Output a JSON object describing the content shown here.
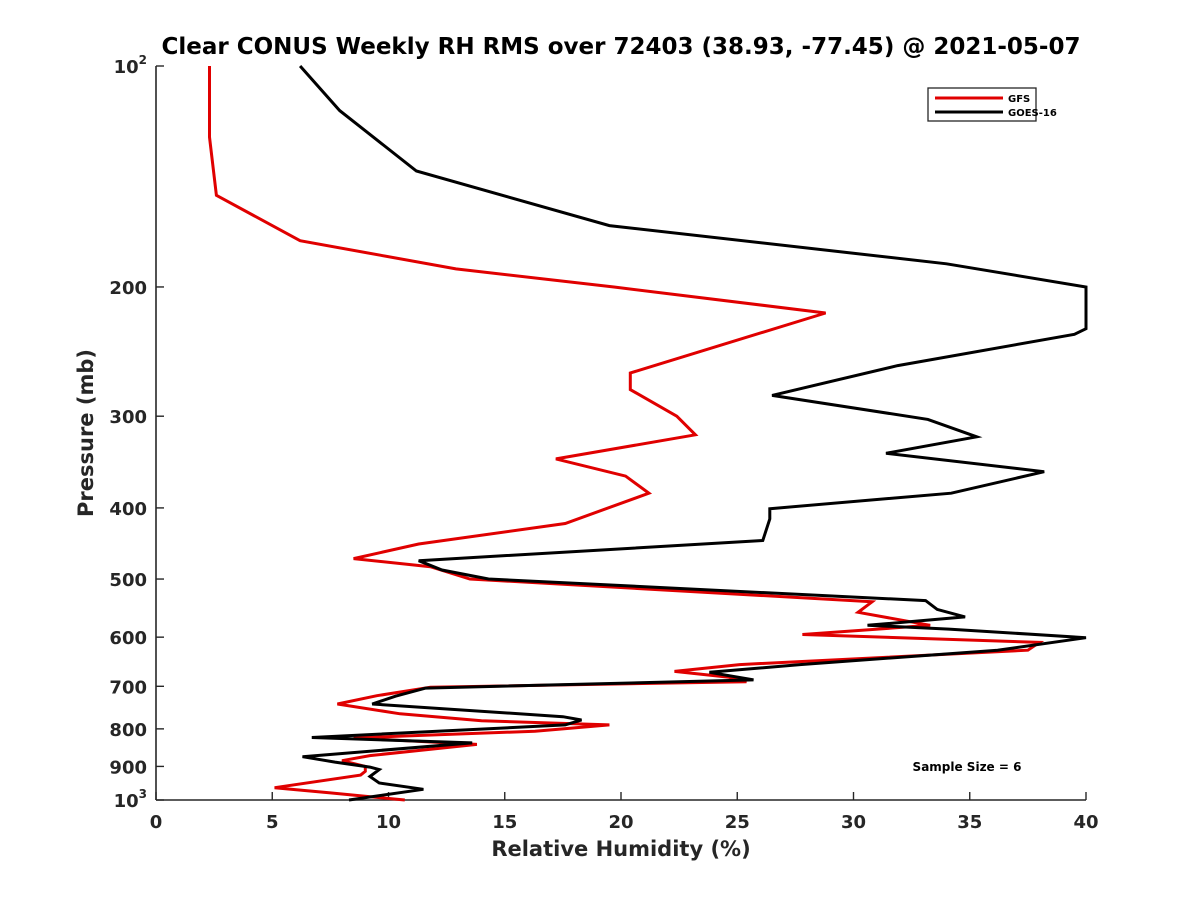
{
  "chart_data": {
    "type": "line",
    "title": "Clear CONUS Weekly RH RMS over 72403 (38.93, -77.45) @ 2021-05-07",
    "xlabel": "Relative Humidity (%)",
    "ylabel": "Pressure (mb)",
    "xlim": [
      0,
      40
    ],
    "ylim": [
      1000,
      100
    ],
    "yscale": "log",
    "yreverse": true,
    "grid": false,
    "legend_position": "top-right",
    "x_ticks": [
      "0",
      "5",
      "10",
      "15",
      "20",
      "25",
      "30",
      "35",
      "40"
    ],
    "y_ticks": [
      {
        "value": 100,
        "label": "10",
        "exp": "2"
      },
      {
        "value": 200,
        "label": "200",
        "exp": ""
      },
      {
        "value": 300,
        "label": "300",
        "exp": ""
      },
      {
        "value": 400,
        "label": "400",
        "exp": ""
      },
      {
        "value": 500,
        "label": "500",
        "exp": ""
      },
      {
        "value": 600,
        "label": "600",
        "exp": ""
      },
      {
        "value": 700,
        "label": "700",
        "exp": ""
      },
      {
        "value": 800,
        "label": "800",
        "exp": ""
      },
      {
        "value": 900,
        "label": "900",
        "exp": ""
      },
      {
        "value": 1000,
        "label": "10",
        "exp": "3"
      }
    ],
    "annotation": "Sample Size = 6",
    "series": [
      {
        "name": "GFS",
        "color": "#e00000",
        "points": [
          [
            2.3,
            100
          ],
          [
            2.3,
            125
          ],
          [
            2.6,
            150
          ],
          [
            6.2,
            173
          ],
          [
            12.9,
            189
          ],
          [
            19.7,
            200
          ],
          [
            28.8,
            217
          ],
          [
            20.4,
            262
          ],
          [
            20.4,
            276
          ],
          [
            22.4,
            300
          ],
          [
            23.2,
            318
          ],
          [
            17.2,
            343
          ],
          [
            20.2,
            362
          ],
          [
            21.2,
            382
          ],
          [
            17.6,
            420
          ],
          [
            11.3,
            448
          ],
          [
            8.5,
            469
          ],
          [
            11.8,
            481
          ],
          [
            13.5,
            500
          ],
          [
            30.8,
            537
          ],
          [
            30.2,
            555
          ],
          [
            33.3,
            578
          ],
          [
            27.8,
            595
          ],
          [
            38,
            610
          ],
          [
            37.5,
            625
          ],
          [
            25.1,
            654
          ],
          [
            22.3,
            668
          ],
          [
            24.6,
            680
          ],
          [
            25.4,
            690
          ],
          [
            11.8,
            702
          ],
          [
            9.5,
            721
          ],
          [
            7.8,
            740
          ],
          [
            10.5,
            763
          ],
          [
            14,
            780
          ],
          [
            19.5,
            790
          ],
          [
            16.3,
            806
          ],
          [
            8.5,
            823
          ],
          [
            13.8,
            840
          ],
          [
            9.2,
            870
          ],
          [
            8,
            884
          ],
          [
            9,
            900
          ],
          [
            9,
            914
          ],
          [
            8.8,
            925
          ],
          [
            5.1,
            962
          ],
          [
            7.5,
            978
          ],
          [
            10.7,
            1000
          ]
        ]
      },
      {
        "name": "GOES-16",
        "color": "#000000",
        "points": [
          [
            6.2,
            100
          ],
          [
            7.9,
            115
          ],
          [
            11.2,
            139
          ],
          [
            19.5,
            165
          ],
          [
            34,
            186
          ],
          [
            40,
            200
          ],
          [
            40,
            228
          ],
          [
            39.5,
            232
          ],
          [
            31.9,
            256
          ],
          [
            26.5,
            281
          ],
          [
            33.2,
            303
          ],
          [
            35.3,
            320
          ],
          [
            31.4,
            337
          ],
          [
            38.2,
            357
          ],
          [
            34.2,
            382
          ],
          [
            26.4,
            401
          ],
          [
            26.4,
            414
          ],
          [
            26.1,
            443
          ],
          [
            11.3,
            472
          ],
          [
            12.3,
            486
          ],
          [
            14.3,
            500
          ],
          [
            33.1,
            535
          ],
          [
            33.6,
            550
          ],
          [
            34.8,
            563
          ],
          [
            30.6,
            578
          ],
          [
            34.1,
            585
          ],
          [
            40,
            601
          ],
          [
            36.2,
            625
          ],
          [
            27.7,
            654
          ],
          [
            23.8,
            670
          ],
          [
            25.7,
            686
          ],
          [
            11.6,
            704
          ],
          [
            10.3,
            722
          ],
          [
            9.3,
            740
          ],
          [
            17.5,
            770
          ],
          [
            18.3,
            778
          ],
          [
            17.6,
            790
          ],
          [
            6.7,
            822
          ],
          [
            13.6,
            836
          ],
          [
            6.3,
            873
          ],
          [
            7.7,
            888
          ],
          [
            9.2,
            902
          ],
          [
            9.6,
            909
          ],
          [
            9.2,
            929
          ],
          [
            9.6,
            948
          ],
          [
            11.5,
            967
          ],
          [
            8.3,
            1000
          ]
        ]
      }
    ]
  }
}
